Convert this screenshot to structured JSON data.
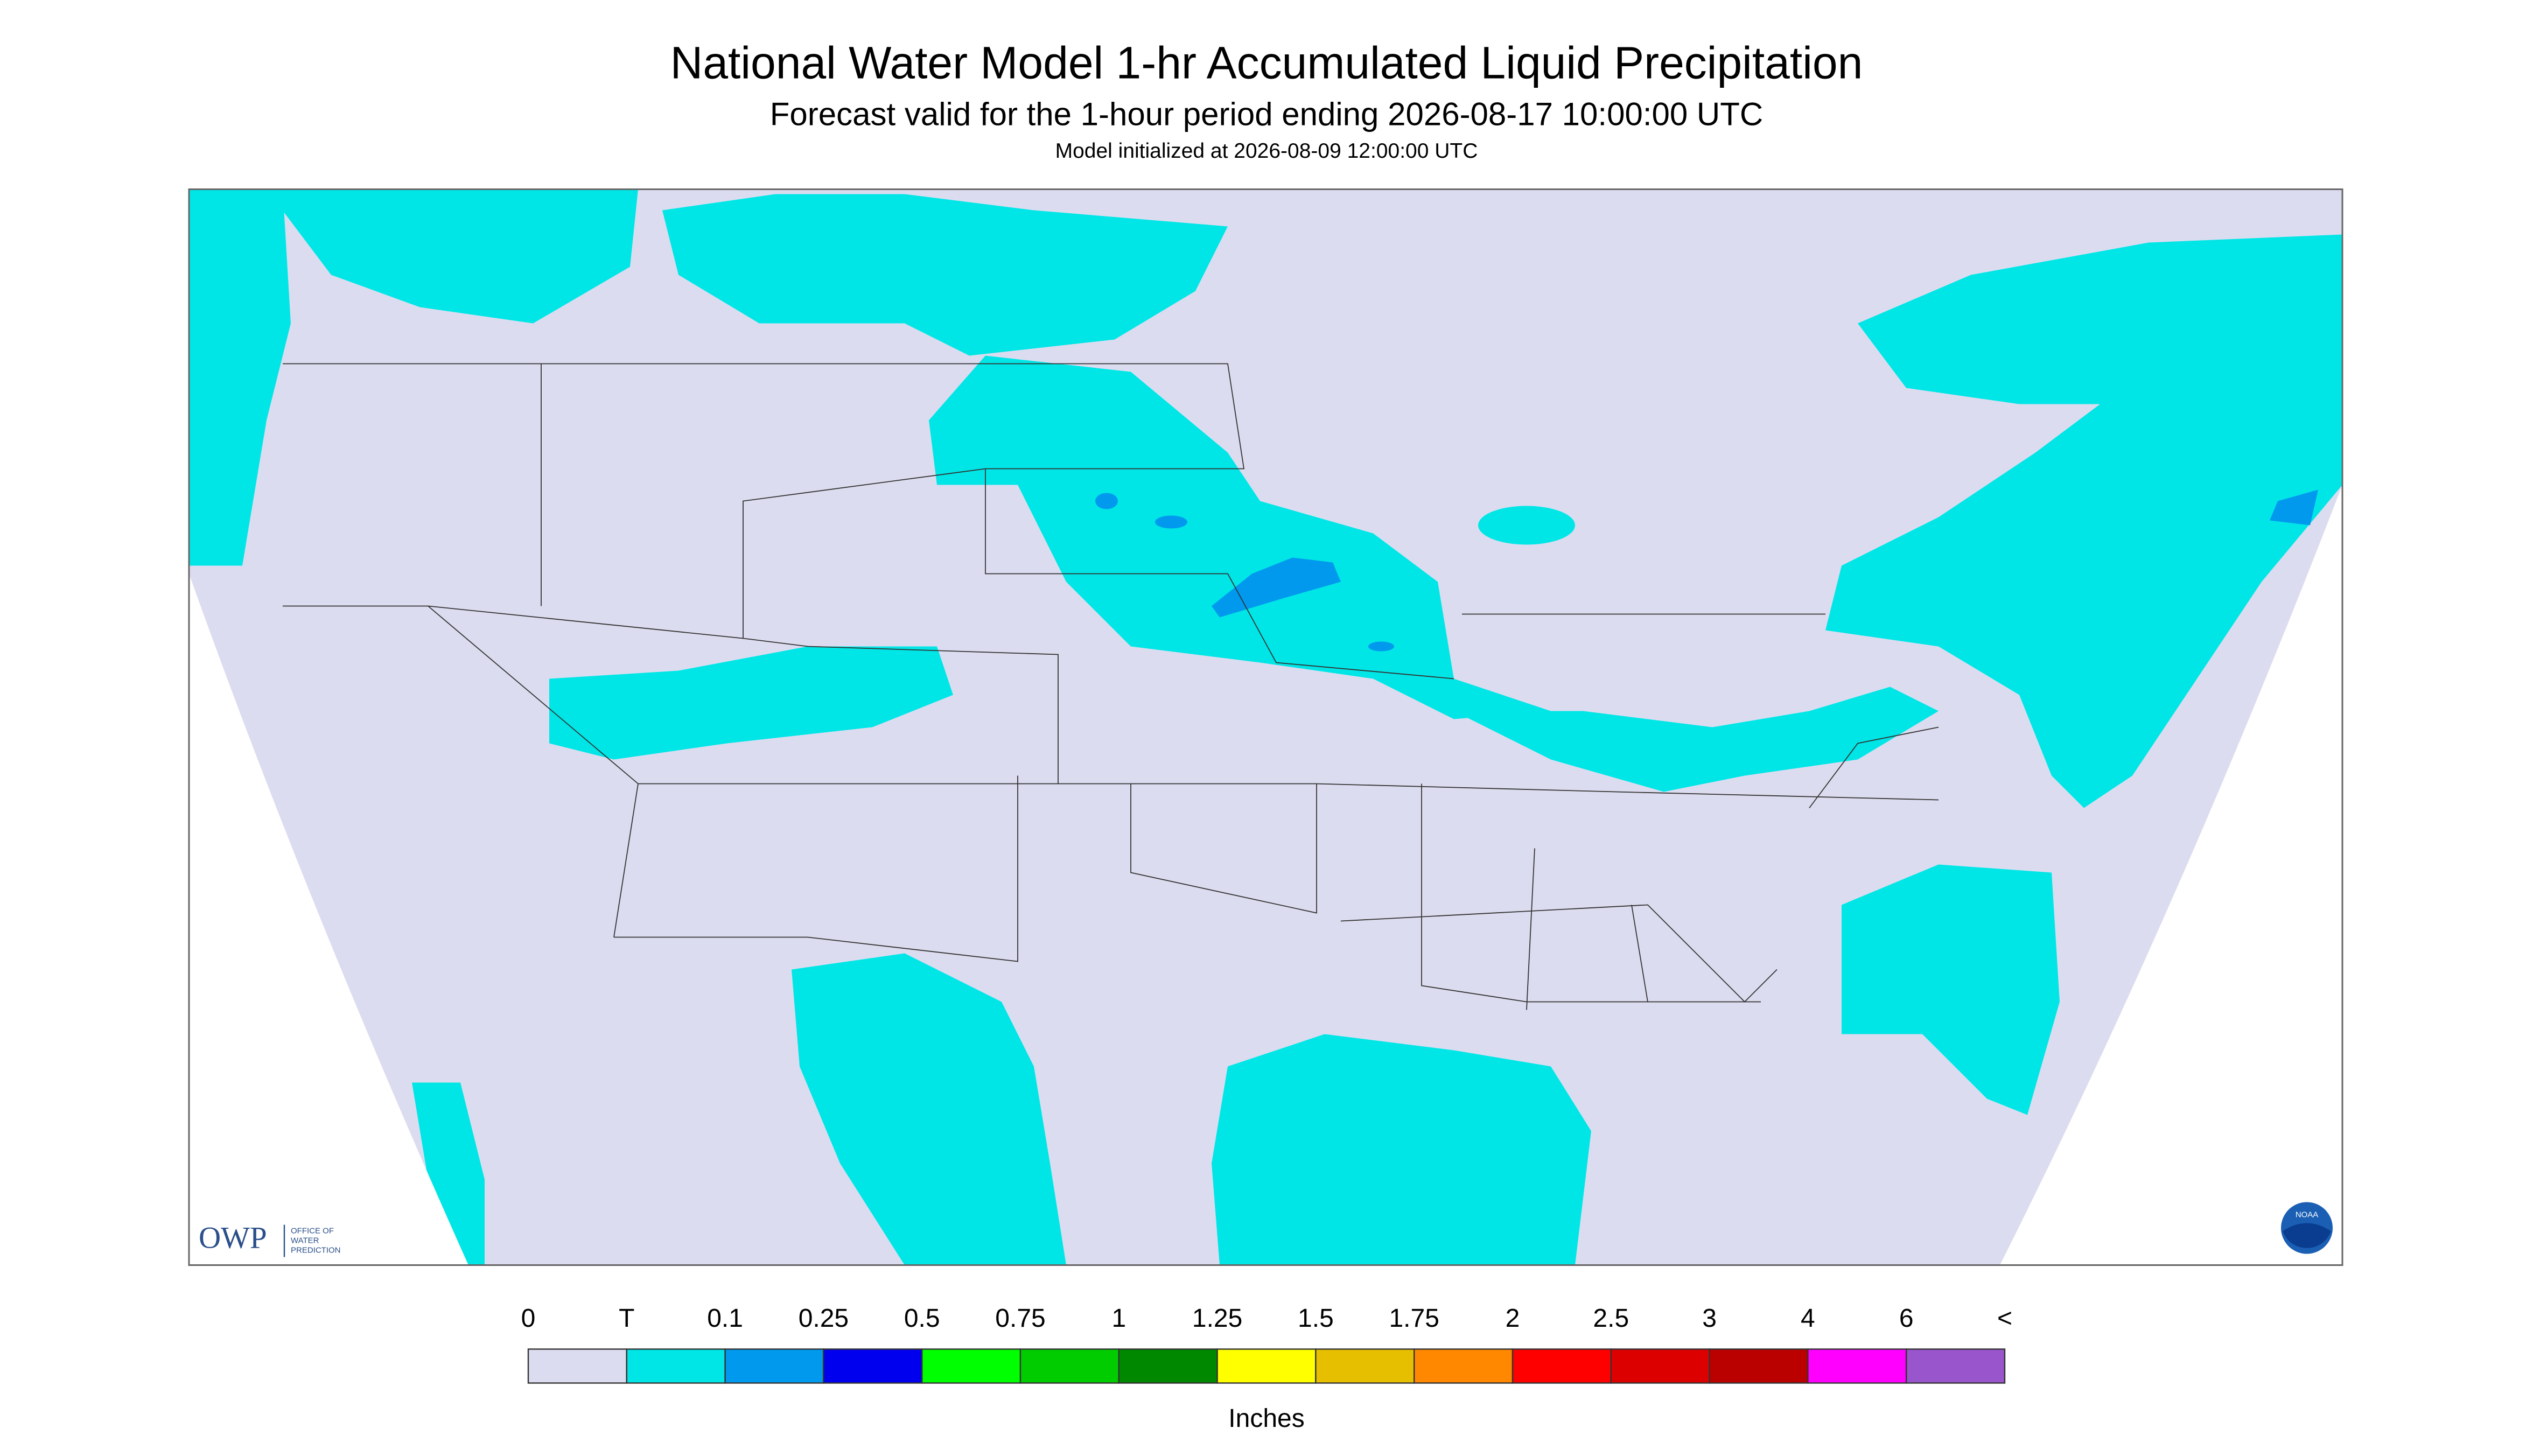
{
  "header": {
    "title": "National Water Model 1-hr Accumulated Liquid Precipitation",
    "subtitle": "Forecast valid for the 1-hour period ending 2026-08-17 10:00:00 UTC",
    "initialized": "Model initialized at 2026-08-09 12:00:00 UTC"
  },
  "legend": {
    "labels": [
      "0",
      "T",
      "0.1",
      "0.25",
      "0.5",
      "0.75",
      "1",
      "1.25",
      "1.5",
      "1.75",
      "2",
      "2.5",
      "3",
      "4",
      "6",
      "<"
    ],
    "colors": [
      "#dcdcf0",
      "#00e6e6",
      "#0099ee",
      "#0000ee",
      "#00ff00",
      "#00cc00",
      "#008800",
      "#ffff00",
      "#e6c000",
      "#ff8800",
      "#ff0000",
      "#dd0000",
      "#bb0000",
      "#ff00ff",
      "#9955cc"
    ],
    "unit": "Inches"
  },
  "logos": {
    "owp": "OWP",
    "owp_lines": [
      "OFFICE OF",
      "WATER",
      "PREDICTION"
    ],
    "noaa": "NOAA"
  }
}
